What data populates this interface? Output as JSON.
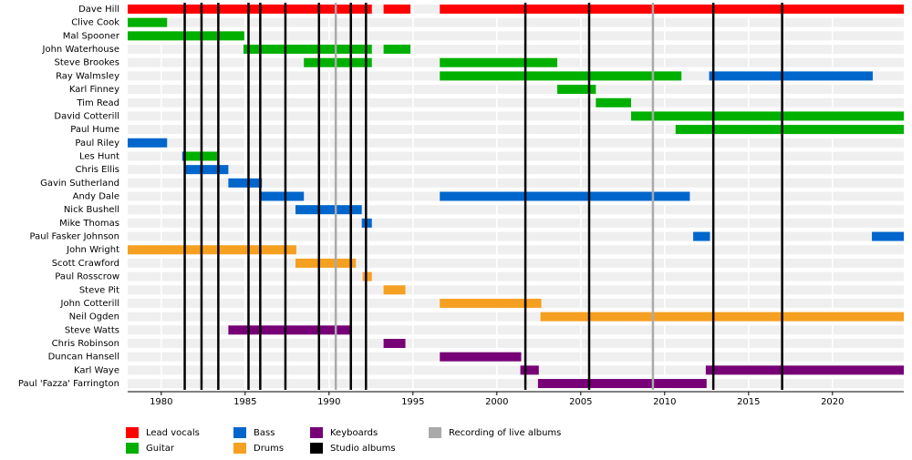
{
  "chart_data": {
    "type": "timeline",
    "xlim": [
      1978,
      2024.25
    ],
    "xticks": [
      1980,
      1985,
      1990,
      1995,
      2000,
      2005,
      2010,
      2015,
      2020
    ],
    "roles": [
      {
        "name": "Lead vocals",
        "color": "#ff0000"
      },
      {
        "name": "Guitar",
        "color": "#00b000"
      },
      {
        "name": "Bass",
        "color": "#0066cc"
      },
      {
        "name": "Drums",
        "color": "#f5a020"
      },
      {
        "name": "Keyboards",
        "color": "#770077"
      }
    ],
    "events": [
      {
        "name": "Studio albums",
        "color": "#000000",
        "values": [
          1981.4,
          1982.4,
          1983.4,
          1985.2,
          1985.9,
          1987.4,
          1989.4,
          1991.3,
          1992.2,
          2001.7,
          2005.5,
          2012.9,
          2017.0
        ]
      },
      {
        "name": "Recording of live albums",
        "color": "#aaaaaa",
        "values": [
          1990.4,
          2009.3
        ]
      }
    ],
    "members": [
      {
        "name": "Dave Hill",
        "spans": [
          {
            "role": "Lead vocals",
            "start": 1978,
            "end": 1992.55
          },
          {
            "role": "Lead vocals",
            "start": 1993.25,
            "end": 1994.85
          },
          {
            "role": "Lead vocals",
            "start": 1996.6,
            "end": 2024.25
          }
        ]
      },
      {
        "name": "Clive Cook",
        "spans": [
          {
            "role": "Guitar",
            "start": 1978,
            "end": 1980.35
          }
        ]
      },
      {
        "name": "Mal Spooner",
        "spans": [
          {
            "role": "Guitar",
            "start": 1978,
            "end": 1984.95
          }
        ]
      },
      {
        "name": "John Waterhouse",
        "spans": [
          {
            "role": "Guitar",
            "start": 1984.9,
            "end": 1992.55
          },
          {
            "role": "Guitar",
            "start": 1993.25,
            "end": 1994.85
          }
        ]
      },
      {
        "name": "Steve Brookes",
        "spans": [
          {
            "role": "Guitar",
            "start": 1988.5,
            "end": 1992.55
          },
          {
            "role": "Guitar",
            "start": 1996.6,
            "end": 2003.6
          }
        ]
      },
      {
        "name": "Ray Walmsley",
        "spans": [
          {
            "role": "Guitar",
            "start": 1996.6,
            "end": 2011.0
          },
          {
            "role": "Bass",
            "start": 2012.65,
            "end": 2022.4
          }
        ]
      },
      {
        "name": "Karl Finney",
        "spans": [
          {
            "role": "Guitar",
            "start": 2003.6,
            "end": 2005.9
          }
        ]
      },
      {
        "name": "Tim Read",
        "spans": [
          {
            "role": "Guitar",
            "start": 2005.9,
            "end": 2008.0
          }
        ]
      },
      {
        "name": "David Cotterill",
        "spans": [
          {
            "role": "Guitar",
            "start": 2008.0,
            "end": 2024.25
          }
        ]
      },
      {
        "name": "Paul Hume",
        "spans": [
          {
            "role": "Guitar",
            "start": 2010.65,
            "end": 2024.25
          }
        ]
      },
      {
        "name": "Paul Riley",
        "spans": [
          {
            "role": "Bass",
            "start": 1978,
            "end": 1980.35
          }
        ]
      },
      {
        "name": "Les Hunt",
        "spans": [
          {
            "role": "Bass",
            "start": 1981.25,
            "end": 1981.45
          },
          {
            "role": "Guitar",
            "start": 1981.45,
            "end": 1983.4
          }
        ]
      },
      {
        "name": "Chris Ellis",
        "spans": [
          {
            "role": "Bass",
            "start": 1981.45,
            "end": 1984.0
          }
        ]
      },
      {
        "name": "Gavin Sutherland",
        "spans": [
          {
            "role": "Bass",
            "start": 1984.0,
            "end": 1986.0
          }
        ]
      },
      {
        "name": "Andy Dale",
        "spans": [
          {
            "role": "Bass",
            "start": 1985.95,
            "end": 1988.5
          },
          {
            "role": "Bass",
            "start": 1996.6,
            "end": 2011.5
          }
        ]
      },
      {
        "name": "Nick Bushell",
        "spans": [
          {
            "role": "Bass",
            "start": 1988.0,
            "end": 1991.95
          }
        ]
      },
      {
        "name": "Mike Thomas",
        "spans": [
          {
            "role": "Bass",
            "start": 1991.95,
            "end": 1992.55
          }
        ]
      },
      {
        "name": "Paul Fasker Johnson",
        "spans": [
          {
            "role": "Bass",
            "start": 2011.7,
            "end": 2012.7
          },
          {
            "role": "Bass",
            "start": 2022.35,
            "end": 2024.25
          }
        ]
      },
      {
        "name": "John Wright",
        "spans": [
          {
            "role": "Drums",
            "start": 1978,
            "end": 1988.05
          }
        ]
      },
      {
        "name": "Scott Crawford",
        "spans": [
          {
            "role": "Drums",
            "start": 1988.0,
            "end": 1991.6
          }
        ]
      },
      {
        "name": "Paul Rosscrow",
        "spans": [
          {
            "role": "Drums",
            "start": 1992.0,
            "end": 1992.55
          }
        ]
      },
      {
        "name": "Steve Pit",
        "spans": [
          {
            "role": "Drums",
            "start": 1993.25,
            "end": 1994.55
          }
        ]
      },
      {
        "name": "John Cotterill",
        "spans": [
          {
            "role": "Drums",
            "start": 1996.6,
            "end": 2002.65
          }
        ]
      },
      {
        "name": "Neil Ogden",
        "spans": [
          {
            "role": "Drums",
            "start": 2002.6,
            "end": 2024.25
          }
        ]
      },
      {
        "name": "Steve Watts",
        "spans": [
          {
            "role": "Keyboards",
            "start": 1984.0,
            "end": 1991.3
          }
        ]
      },
      {
        "name": "Chris Robinson",
        "spans": [
          {
            "role": "Keyboards",
            "start": 1993.25,
            "end": 1994.55
          }
        ]
      },
      {
        "name": "Duncan Hansell",
        "spans": [
          {
            "role": "Keyboards",
            "start": 1996.6,
            "end": 2001.45
          }
        ]
      },
      {
        "name": "Karl Waye",
        "spans": [
          {
            "role": "Keyboards",
            "start": 2001.4,
            "end": 2002.5
          },
          {
            "role": "Keyboards",
            "start": 2012.45,
            "end": 2024.25
          }
        ]
      },
      {
        "name": "Paul 'Fazza' Farrington",
        "spans": [
          {
            "role": "Keyboards",
            "start": 2002.45,
            "end": 2012.5
          }
        ]
      }
    ]
  }
}
